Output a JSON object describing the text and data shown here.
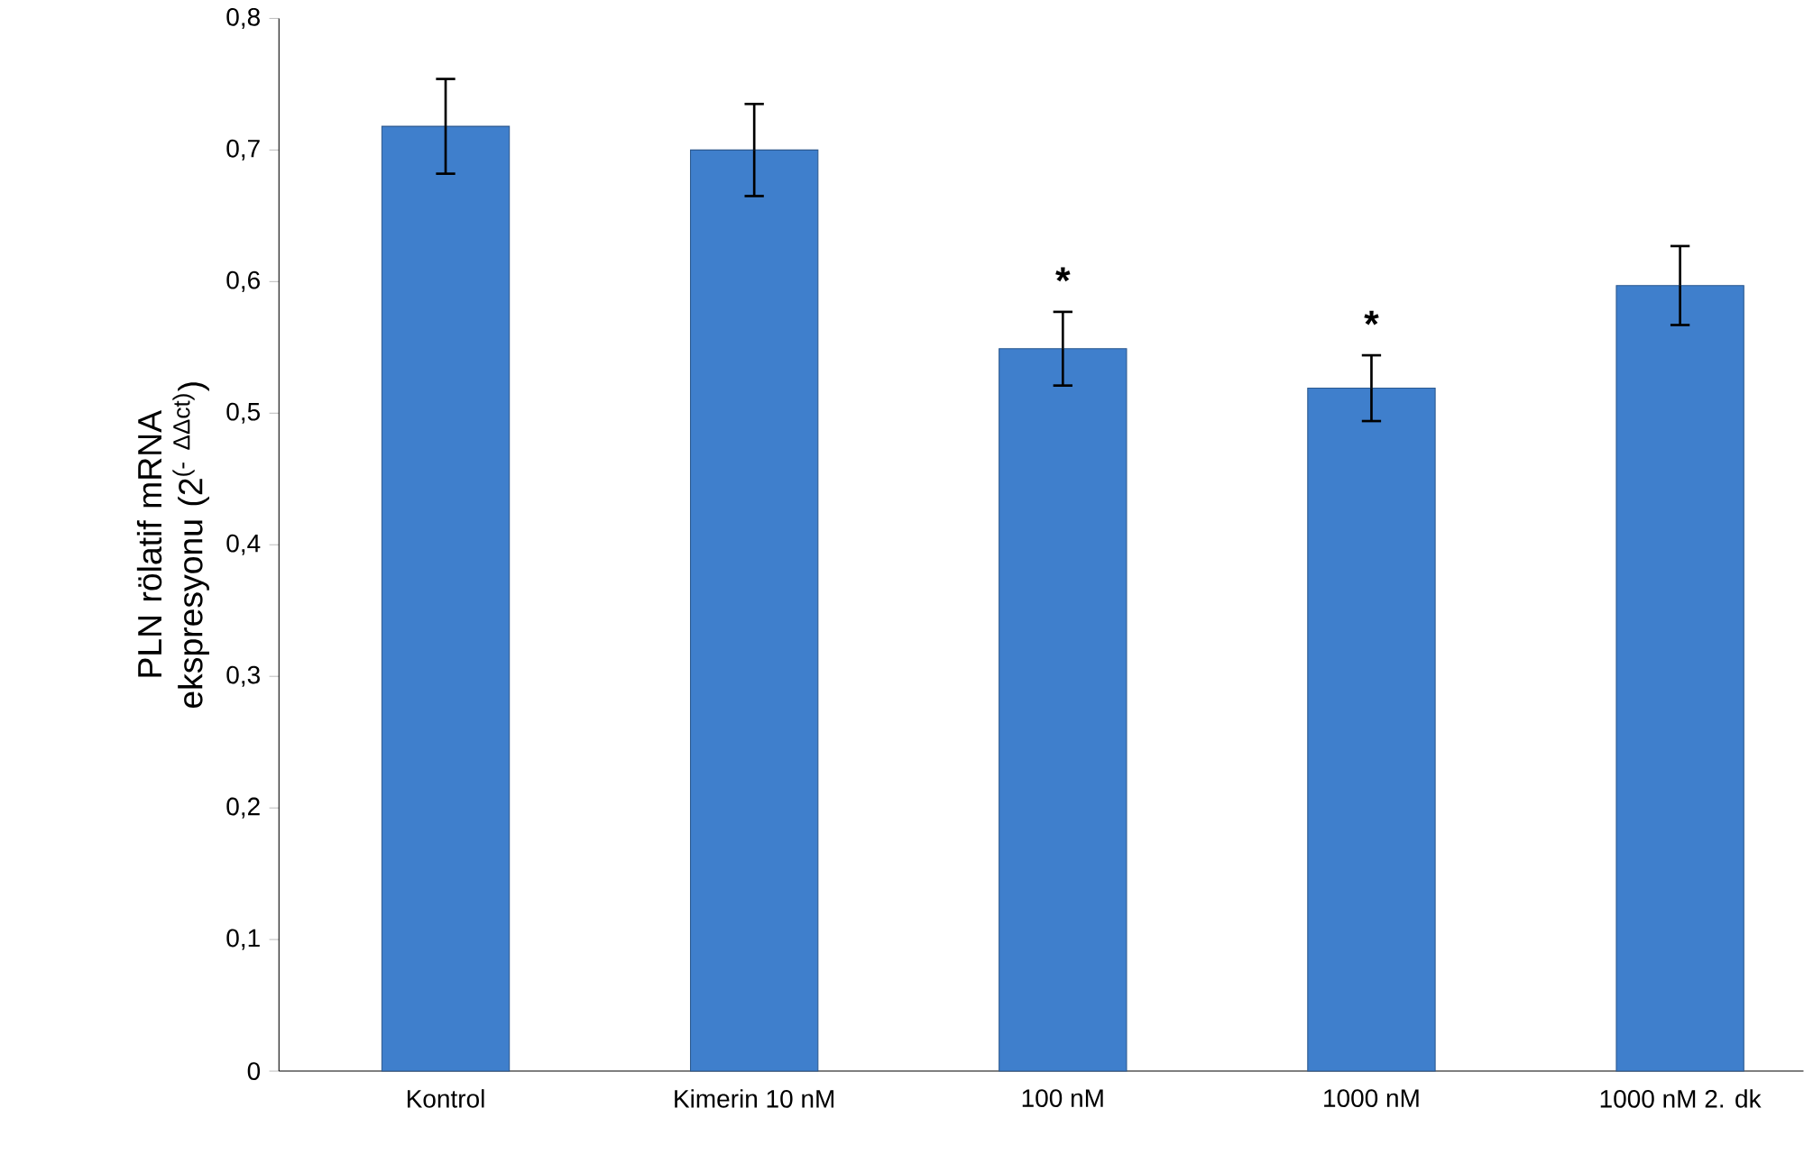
{
  "chart_data": {
    "type": "bar",
    "ylabel": "PLN rölatif mRNA ekspresyonu (2$^{(- ΔΔct)}$)",
    "categories": [
      "Kontrol",
      "Kimerin 10 nM",
      "100 nM",
      "1000 nM",
      "1000 nM 2. dk"
    ],
    "values": [
      0.718,
      0.7,
      0.549,
      0.519,
      0.597
    ],
    "errors": [
      0.036,
      0.035,
      0.028,
      0.025,
      0.03
    ],
    "color": "#3f7fcc",
    "ylim": [
      0,
      0.8
    ],
    "yticks": [
      {
        "value": 0,
        "label": "0"
      },
      {
        "value": 0.1,
        "label": "0,1"
      },
      {
        "value": 0.2,
        "label": "0,2"
      },
      {
        "value": 0.3,
        "label": "0,3"
      },
      {
        "value": 0.4,
        "label": "0,4"
      },
      {
        "value": 0.5,
        "label": "0,5"
      },
      {
        "value": 0.6,
        "label": "0,6"
      },
      {
        "value": 0.7,
        "label": "0,7"
      },
      {
        "value": 0.8,
        "label": "0,8"
      }
    ],
    "annotations": [
      {
        "text": "*",
        "x": "100 nM",
        "y": 0.549
      },
      {
        "text": "*",
        "x": "1000 nM",
        "y": 0.519
      }
    ],
    "grid": false
  }
}
